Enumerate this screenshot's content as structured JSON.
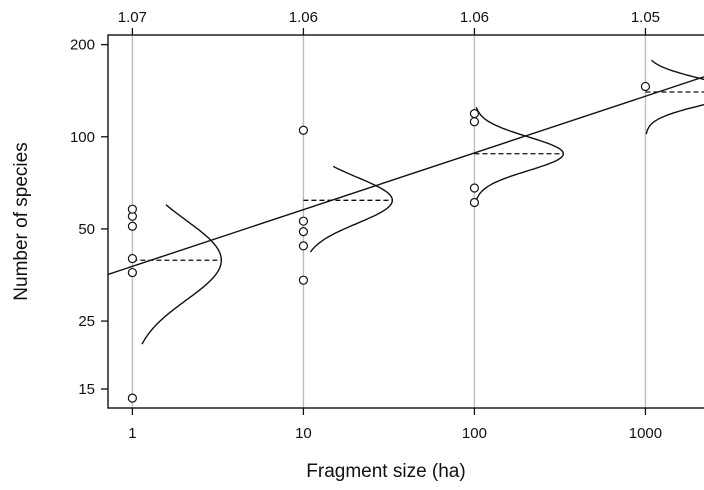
{
  "chart_data": {
    "type": "scatter",
    "xlabel": "Fragment size (ha)",
    "ylabel": "Number of species",
    "x_scale": "log",
    "y_scale": "log",
    "xlim": [
      0.72,
      2200
    ],
    "ylim": [
      13,
      215
    ],
    "x_ticks": [
      {
        "value": 1,
        "label": "1"
      },
      {
        "value": 10,
        "label": "10"
      },
      {
        "value": 100,
        "label": "100"
      },
      {
        "value": 1000,
        "label": "1000"
      }
    ],
    "y_ticks": [
      {
        "value": 15,
        "label": "15"
      },
      {
        "value": 25,
        "label": "25"
      },
      {
        "value": 50,
        "label": "50"
      },
      {
        "value": 100,
        "label": "100"
      },
      {
        "value": 200,
        "label": "200"
      }
    ],
    "top_labels": [
      {
        "x": 1,
        "label": "1.07"
      },
      {
        "x": 10,
        "label": "1.06"
      },
      {
        "x": 100,
        "label": "1.06"
      },
      {
        "x": 1000,
        "label": "1.05"
      }
    ],
    "points": [
      {
        "x": 1,
        "values": [
          14,
          36,
          40,
          51,
          55,
          58
        ]
      },
      {
        "x": 10,
        "values": [
          34,
          44,
          49,
          53,
          105
        ]
      },
      {
        "x": 100,
        "values": [
          61,
          68,
          112,
          119
        ]
      },
      {
        "x": 1000,
        "values": [
          146
        ]
      }
    ],
    "fit_line": {
      "x_start": 0.72,
      "y_start": 35.5,
      "x_end": 2200,
      "y_end": 157
    },
    "distributions": [
      {
        "x": 1,
        "mode": 39.5,
        "spread": 0.13,
        "y_from": 21,
        "y_to": 60
      },
      {
        "x": 10,
        "mode": 62,
        "spread": 0.075,
        "y_from": 42,
        "y_to": 80
      },
      {
        "x": 100,
        "mode": 88,
        "spread": 0.055,
        "y_from": 62,
        "y_to": 125
      },
      {
        "x": 1000,
        "mode": 140,
        "spread": 0.045,
        "y_from": 102,
        "y_to": 178
      }
    ],
    "grid": false,
    "legend": "none"
  }
}
